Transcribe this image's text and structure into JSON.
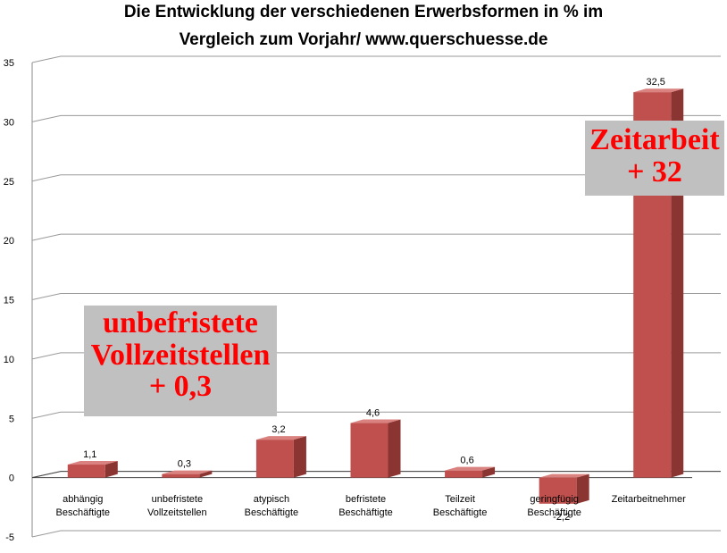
{
  "chart_data": {
    "type": "bar",
    "title_lines": [
      "Die Entwicklung der verschiedenen Erwerbsformen in % im",
      "Vergleich zum Vorjahr/ www.querschuesse.de"
    ],
    "categories": [
      [
        "abhängig",
        "Beschäftigte"
      ],
      [
        "unbefristete",
        "Vollzeitstellen"
      ],
      [
        "atypisch",
        "Beschäftigte"
      ],
      [
        "befristete",
        "Beschäftigte"
      ],
      [
        "Teilzeit",
        "Beschäftigte"
      ],
      [
        "geringfügig",
        "Beschäftigte"
      ],
      [
        "Zeitarbeitnehmer"
      ]
    ],
    "values": [
      1.1,
      0.3,
      3.2,
      4.6,
      0.6,
      -2.2,
      32.5
    ],
    "value_labels": [
      "1,1",
      "0,3",
      "3,2",
      "4,6",
      "0,6",
      "-2,2",
      "32,5"
    ],
    "ylim": [
      -5,
      35
    ],
    "yticks": [
      "-5",
      "0",
      "5",
      "10",
      "15",
      "20",
      "25",
      "30",
      "35"
    ],
    "grid": true,
    "legend": "none",
    "colors": {
      "bar_front": "#c0504d",
      "bar_side": "#8b3532",
      "bar_top": "#d9827f",
      "grid": "#9a9a9a"
    },
    "annotations": [
      {
        "lines": [
          "unbefristete",
          "Vollzeitstellen",
          "+ 0,3"
        ],
        "color": "#ff0000",
        "background": "#c0c0c0"
      },
      {
        "lines": [
          "Zeitarbeit",
          "+ 32"
        ],
        "color": "#ff0000",
        "background": "#c0c0c0"
      }
    ]
  }
}
